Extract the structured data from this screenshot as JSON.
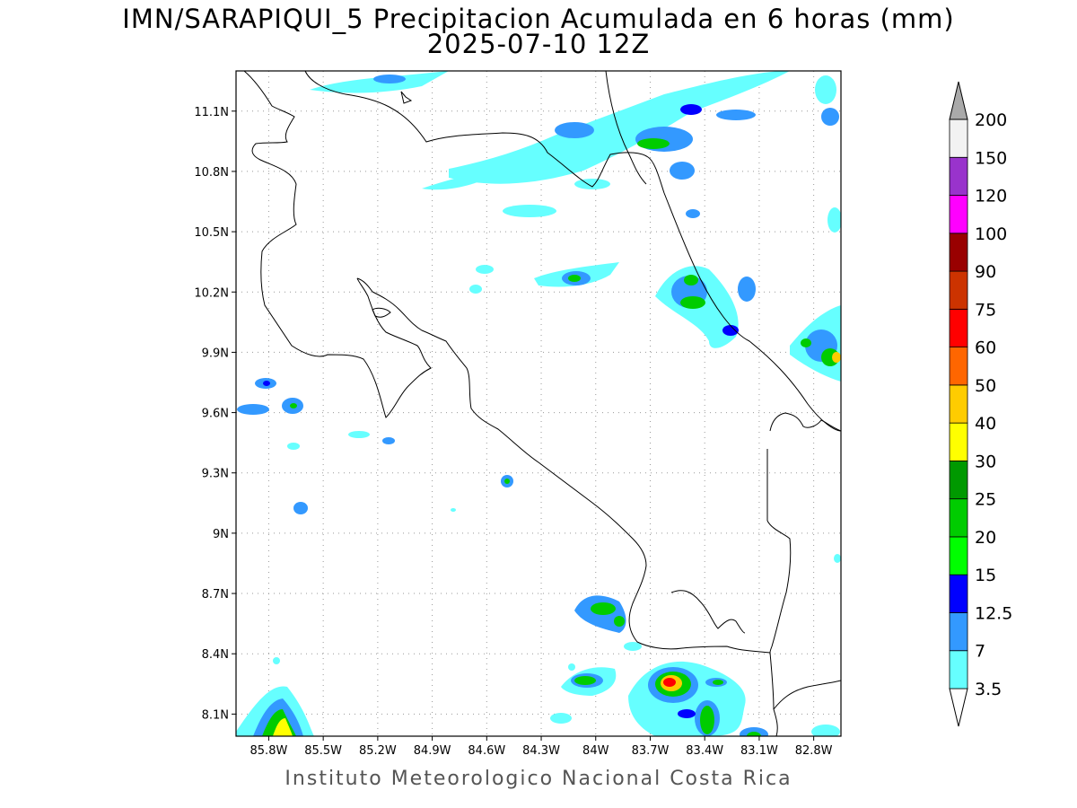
{
  "title": "IMN/SARAPIQUI_5 Precipitacion Acumulada en 6 horas (mm)",
  "subtitle": "2025-07-10 12Z",
  "footer": "Instituto Meteorologico Nacional Costa Rica",
  "map": {
    "lon_range": [
      -85.98,
      -82.65
    ],
    "lat_range": [
      7.99,
      11.3
    ],
    "lon_ticks": [
      {
        "v": -85.8,
        "label": "85.8W"
      },
      {
        "v": -85.5,
        "label": "85.5W"
      },
      {
        "v": -85.2,
        "label": "85.2W"
      },
      {
        "v": -84.9,
        "label": "84.9W"
      },
      {
        "v": -84.6,
        "label": "84.6W"
      },
      {
        "v": -84.3,
        "label": "84.3W"
      },
      {
        "v": -84.0,
        "label": "84W"
      },
      {
        "v": -83.7,
        "label": "83.7W"
      },
      {
        "v": -83.4,
        "label": "83.4W"
      },
      {
        "v": -83.1,
        "label": "83.1W"
      },
      {
        "v": -82.8,
        "label": "82.8W"
      }
    ],
    "lat_ticks": [
      {
        "v": 11.1,
        "label": "11.1N"
      },
      {
        "v": 10.8,
        "label": "10.8N"
      },
      {
        "v": 10.5,
        "label": "10.5N"
      },
      {
        "v": 10.2,
        "label": "10.2N"
      },
      {
        "v": 9.9,
        "label": "9.9N"
      },
      {
        "v": 9.6,
        "label": "9.6N"
      },
      {
        "v": 9.3,
        "label": "9.3N"
      },
      {
        "v": 9.0,
        "label": "9N"
      },
      {
        "v": 8.7,
        "label": "8.7N"
      },
      {
        "v": 8.4,
        "label": "8.4N"
      },
      {
        "v": 8.1,
        "label": "8.1N"
      }
    ],
    "colorbar": [
      {
        "label": "3.5",
        "color": "#66ffff"
      },
      {
        "label": "7",
        "color": "#3399ff"
      },
      {
        "label": "12.5",
        "color": "#0000ff"
      },
      {
        "label": "15",
        "color": "#00ff00"
      },
      {
        "label": "20",
        "color": "#00cc00"
      },
      {
        "label": "25",
        "color": "#009900"
      },
      {
        "label": "30",
        "color": "#ffff00"
      },
      {
        "label": "40",
        "color": "#ffcc00"
      },
      {
        "label": "50",
        "color": "#ff6600"
      },
      {
        "label": "60",
        "color": "#ff0000"
      },
      {
        "label": "75",
        "color": "#cc3300"
      },
      {
        "label": "90",
        "color": "#990000"
      },
      {
        "label": "100",
        "color": "#ff00ff"
      },
      {
        "label": "120",
        "color": "#9933cc"
      },
      {
        "label": "150",
        "color": "#f2f2f2"
      },
      {
        "label": "200",
        "color": "#aaaaaa"
      }
    ]
  }
}
